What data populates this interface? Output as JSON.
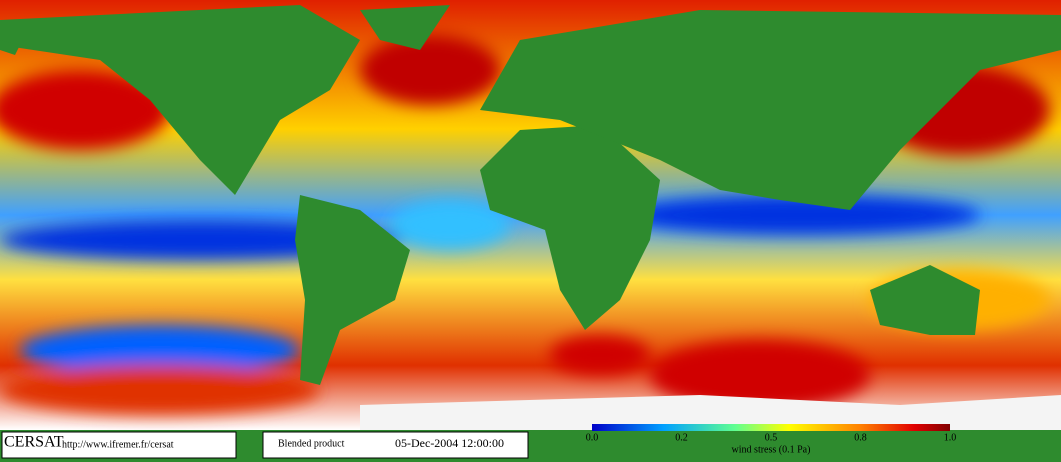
{
  "footer": {
    "logo": "CERSAT",
    "url": "http://www.ifremer.fr/cersat",
    "product": "Blended product",
    "date": "05-Dec-2004 12:00:00"
  },
  "colorbar": {
    "ticks": [
      "0.0",
      "0.2",
      "0.5",
      "0.8",
      "1.0"
    ],
    "label": "wind stress (0.1 Pa)"
  }
}
